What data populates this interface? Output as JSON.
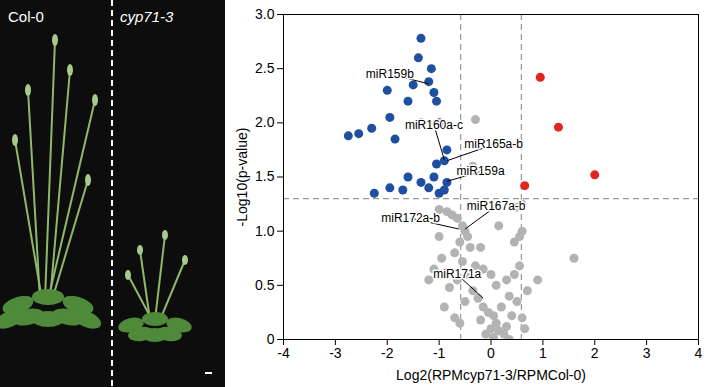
{
  "photo": {
    "labels": [
      "Col-0",
      "cyp71-3"
    ]
  },
  "chart_data": {
    "type": "scatter",
    "x_label": "Log2(RPMcyp71-3/RPMCol-0)",
    "y_label": "-Log10(p-value)",
    "xlim": [
      -4,
      4
    ],
    "xticks": [
      -4,
      -3,
      -2,
      -1,
      0,
      1,
      2,
      3,
      4
    ],
    "ylim": [
      0,
      3
    ],
    "yticks": [
      0,
      0.5,
      {
        "value": 1,
        "label": "1.0"
      },
      1.5,
      {
        "value": 2,
        "label": "2.0"
      },
      2.5,
      {
        "value": 3,
        "label": "3.0"
      }
    ],
    "grid": false,
    "marker": "circle",
    "thresholds": {
      "x": [
        -0.585,
        0.585
      ],
      "y": 1.301
    },
    "series": [
      {
        "color": "#b3b3b3",
        "x": [
          -0.3,
          -0.85,
          -0.75,
          -0.65,
          -0.55,
          -0.5,
          -0.45,
          -0.6,
          -0.4,
          -0.7,
          -0.95,
          -0.55,
          -0.3,
          -0.45,
          -0.65,
          -0.8,
          -0.35,
          -0.25,
          -0.5,
          -0.15,
          -0.05,
          0.05,
          -0.2,
          0.1,
          0.0,
          0.15,
          -0.1,
          0.05,
          0.25,
          0.3,
          0.2,
          0.35,
          0.3,
          0.45,
          0.55,
          0.5,
          0.4,
          0.55,
          0.6,
          0.5,
          0.45,
          0.7,
          0.6,
          0.65,
          1.6,
          0.9,
          -1.1,
          -1.2,
          -0.9,
          -0.7,
          -1.0,
          -0.2,
          -0.15,
          0.1,
          0.0,
          -0.6,
          0.35,
          0.15,
          0.6,
          -1.0,
          -0.35
        ],
        "y": [
          2.03,
          1.18,
          1.15,
          1.12,
          1.05,
          1.0,
          0.95,
          0.9,
          0.85,
          0.8,
          0.75,
          0.72,
          0.68,
          0.6,
          0.55,
          0.48,
          0.45,
          0.38,
          0.35,
          0.3,
          0.25,
          0.22,
          0.18,
          0.15,
          0.1,
          0.08,
          0.05,
          0.02,
          0.05,
          0.12,
          0.3,
          0.4,
          0.55,
          0.6,
          0.68,
          0.35,
          0.22,
          0.95,
          1.0,
          1.22,
          0.9,
          0.45,
          0.2,
          0.1,
          0.75,
          0.55,
          0.65,
          0.55,
          0.3,
          0.2,
          0.95,
          0.85,
          0.65,
          0.5,
          0.6,
          0.15,
          0.0,
          1.05,
          1.25,
          1.2,
          1.6
        ]
      },
      {
        "color": "#1f4fa0",
        "x": [
          -1.35,
          -1.4,
          -1.15,
          -1.2,
          -1.5,
          -1.1,
          -1.05,
          -1.6,
          -2.0,
          -1.95,
          -2.3,
          -1.35,
          -1.0,
          -2.55,
          -2.75,
          -1.85,
          -0.85,
          -0.9,
          -1.05,
          -1.6,
          -1.35,
          -1.1,
          -0.85,
          -1.95,
          -2.25,
          -1.2,
          -1.7,
          -1.0,
          -0.9
        ],
        "y": [
          2.78,
          2.6,
          2.5,
          2.38,
          2.35,
          2.28,
          2.2,
          2.2,
          2.3,
          2.05,
          1.95,
          2.0,
          2.0,
          1.9,
          1.88,
          1.85,
          1.75,
          1.65,
          1.62,
          1.5,
          1.45,
          1.5,
          1.45,
          1.4,
          1.35,
          1.4,
          1.38,
          1.35,
          1.38
        ]
      },
      {
        "color": "#e0261e",
        "x": [
          0.95,
          1.3,
          0.65,
          2.0
        ],
        "y": [
          2.42,
          1.96,
          1.42,
          1.52
        ]
      }
    ],
    "annotations": [
      {
        "text": "miR159b",
        "x": -1.95,
        "y": 2.45,
        "point_x": -1.2,
        "point_y": 2.36
      },
      {
        "text": "miR160a-c",
        "x": -1.1,
        "y": 1.98,
        "point_x": -0.9,
        "point_y": 1.66
      },
      {
        "text": "miR165a-b",
        "x": 0.05,
        "y": 1.8,
        "point_x": -0.85,
        "point_y": 1.65
      },
      {
        "text": "miR159a",
        "x": -0.2,
        "y": 1.55,
        "point_x": -0.85,
        "point_y": 1.46
      },
      {
        "text": "miR172a-b",
        "x": -1.55,
        "y": 1.12,
        "point_x": -0.62,
        "point_y": 1.02
      },
      {
        "text": "miR167a-b",
        "x": 0.1,
        "y": 1.23,
        "point_x": -0.5,
        "point_y": 1.02
      },
      {
        "text": "miR171a",
        "x": -0.65,
        "y": 0.6,
        "point_x": -0.15,
        "point_y": 0.38
      }
    ]
  }
}
